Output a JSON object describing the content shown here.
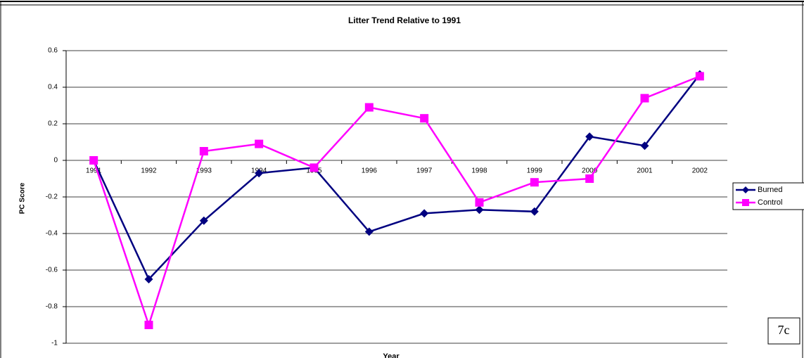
{
  "chart_data": {
    "type": "line",
    "title": "Litter Trend Relative to 1991",
    "x_label": "Year",
    "y_label": "PC Score",
    "annotation": "7c",
    "categories": [
      "1991",
      "1992",
      "1993",
      "1994",
      "1995",
      "1996",
      "1997",
      "1998",
      "1999",
      "2000",
      "2001",
      "2002"
    ],
    "series": [
      {
        "name": "Burned",
        "color": "#000080",
        "marker": "diamond",
        "values": [
          0,
          -0.65,
          -0.33,
          -0.07,
          -0.04,
          -0.39,
          -0.29,
          -0.27,
          -0.28,
          0.13,
          0.08,
          0.47
        ]
      },
      {
        "name": "Control",
        "color": "#ff00ff",
        "marker": "square",
        "values": [
          0,
          -0.9,
          0.05,
          0.09,
          -0.04,
          0.29,
          0.23,
          -0.23,
          -0.12,
          -0.1,
          0.34,
          0.46
        ]
      }
    ],
    "ylim": [
      -1,
      0.6
    ],
    "yticks": [
      0.6,
      0.4,
      0.2,
      0,
      -0.2,
      -0.4,
      -0.6,
      -0.8,
      -1
    ],
    "grid": true,
    "legend": "right"
  }
}
